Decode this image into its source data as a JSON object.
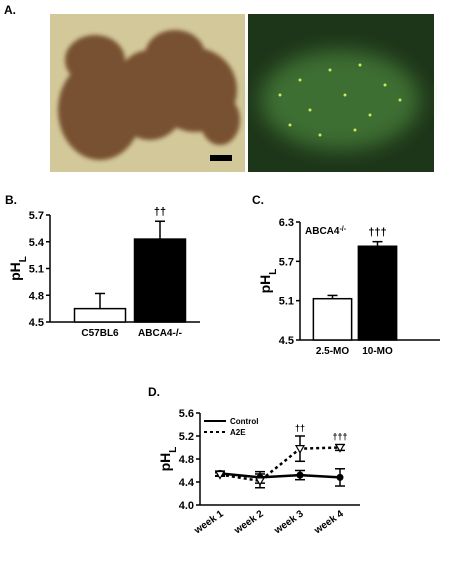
{
  "figure": {
    "panel_a_label": "A."
  },
  "chart_data": [
    {
      "type": "bar",
      "panel": "B.",
      "ylabel": "pH",
      "ylabel_sub": "L",
      "categories": [
        "C57BL6",
        "ABCA4-/-"
      ],
      "values": [
        4.65,
        5.43
      ],
      "errors": [
        0.17,
        0.2
      ],
      "colors": [
        "#ffffff",
        "#000000"
      ],
      "annotations": [
        null,
        "††"
      ],
      "ylim": [
        4.5,
        5.7
      ],
      "yticks": [
        4.5,
        4.8,
        5.1,
        5.4,
        5.7
      ]
    },
    {
      "type": "bar",
      "panel": "C.",
      "ylabel": "pH",
      "ylabel_sub": "L",
      "inset": "ABCA4",
      "inset_sup": "-/-",
      "categories": [
        "2.5-MO",
        "10-MO"
      ],
      "values": [
        5.13,
        5.93
      ],
      "errors": [
        0.05,
        0.07
      ],
      "colors": [
        "#ffffff",
        "#000000"
      ],
      "annotations": [
        null,
        "†††"
      ],
      "ylim": [
        4.5,
        6.3
      ],
      "yticks": [
        4.5,
        5.1,
        5.7,
        6.3
      ]
    },
    {
      "type": "line",
      "panel": "D.",
      "ylabel": "pH",
      "ylabel_sub": "L",
      "categories": [
        "week 1",
        "week 2",
        "week 3",
        "week 4"
      ],
      "series": [
        {
          "name": "Control",
          "color": "#000000",
          "line_style": "solid",
          "marker": "circle",
          "values": [
            4.55,
            4.48,
            4.52,
            4.48
          ],
          "errors": [
            0.04,
            0.1,
            0.08,
            0.15
          ]
        },
        {
          "name": "A2E",
          "color": "#000000",
          "line_style": "dotted",
          "marker": "triangle",
          "values": [
            4.53,
            4.42,
            4.98,
            5.0
          ],
          "errors": [
            0.03,
            0.12,
            0.22,
            0.05
          ]
        }
      ],
      "annotations": [
        null,
        null,
        "††",
        "†††"
      ],
      "ylim": [
        4.0,
        5.6
      ],
      "yticks": [
        {
          "value": 4.0,
          "label": "4.0"
        },
        4.4,
        4.8,
        5.2,
        5.6
      ],
      "legend": "upper left"
    }
  ]
}
